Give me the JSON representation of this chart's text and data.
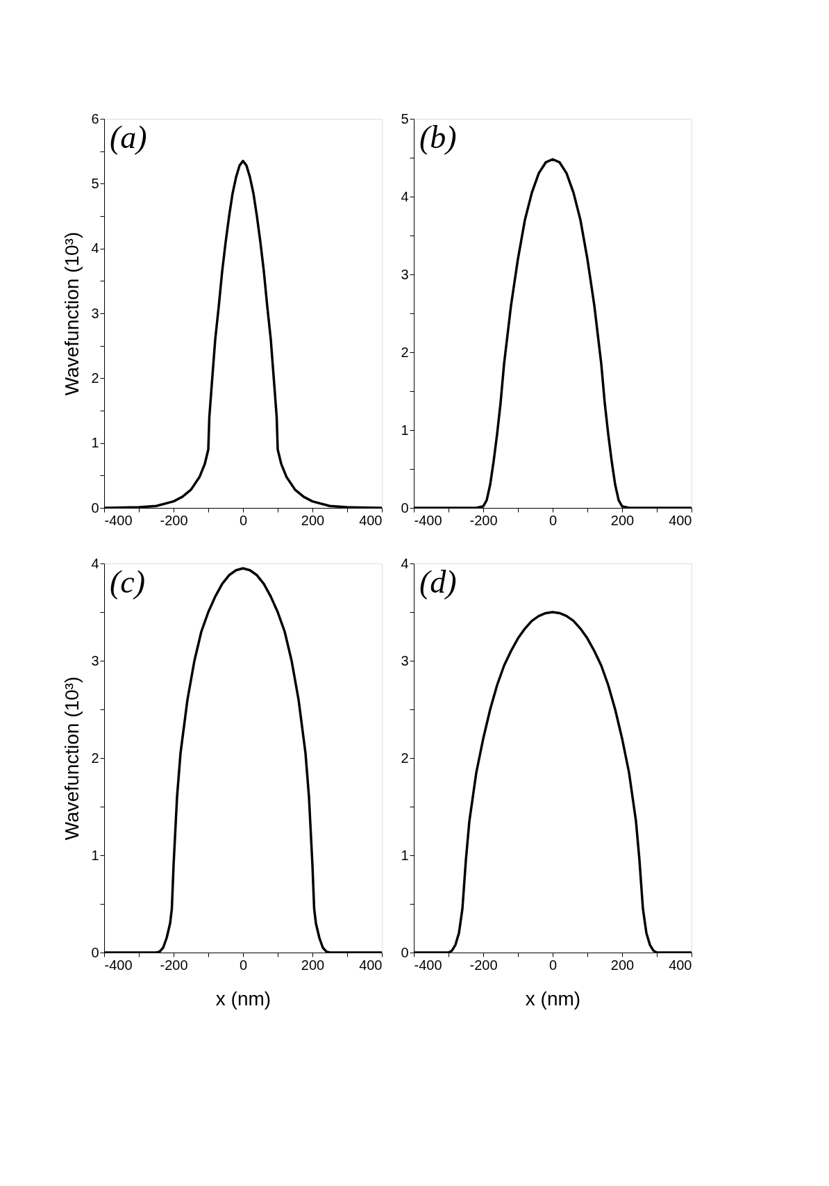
{
  "chart_data": [
    {
      "type": "line",
      "ylabel": "Wavefunction (10³)",
      "annotations": [
        "(a)"
      ],
      "xlim": [
        -400,
        400
      ],
      "ylim": [
        0,
        6
      ],
      "grid": false,
      "line_style": "solid",
      "xticks": [
        -400,
        {
          "value": -300,
          "label": null
        },
        -200,
        {
          "value": -100,
          "label": null
        },
        0,
        {
          "value": 100,
          "label": null
        },
        200,
        {
          "value": 300,
          "label": null
        },
        400
      ],
      "yticks": [
        0,
        {
          "value": 0.5,
          "label": null
        },
        1,
        {
          "value": 1.5,
          "label": null
        },
        2,
        {
          "value": 2.5,
          "label": null
        },
        3,
        {
          "value": 3.5,
          "label": null
        },
        4,
        {
          "value": 4.5,
          "label": null
        },
        5,
        {
          "value": 5.5,
          "label": null
        },
        6
      ],
      "series": [
        {
          "color": "#000000",
          "x": [
            -400,
            -300,
            -250,
            -200,
            -175,
            -150,
            -125,
            -110,
            -100,
            -97,
            -90,
            -80,
            -70,
            -60,
            -50,
            -40,
            -30,
            -20,
            -10,
            0,
            10,
            20,
            30,
            40,
            50,
            60,
            70,
            80,
            90,
            97,
            100,
            110,
            125,
            150,
            175,
            200,
            250,
            300,
            400
          ],
          "values": [
            0,
            0.01,
            0.03,
            0.1,
            0.17,
            0.28,
            0.48,
            0.68,
            0.9,
            1.4,
            1.9,
            2.6,
            3.1,
            3.65,
            4.1,
            4.5,
            4.85,
            5.1,
            5.28,
            5.35,
            5.28,
            5.1,
            4.85,
            4.5,
            4.1,
            3.65,
            3.1,
            2.6,
            1.9,
            1.4,
            0.9,
            0.68,
            0.48,
            0.28,
            0.17,
            0.1,
            0.03,
            0.01,
            0
          ]
        }
      ]
    },
    {
      "type": "line",
      "annotations": [
        "(b)"
      ],
      "xlim": [
        -400,
        400
      ],
      "ylim": [
        0,
        5
      ],
      "grid": false,
      "line_style": "solid",
      "xticks": [
        -400,
        {
          "value": -300,
          "label": null
        },
        -200,
        {
          "value": -100,
          "label": null
        },
        0,
        {
          "value": 100,
          "label": null
        },
        200,
        {
          "value": 300,
          "label": null
        },
        400
      ],
      "yticks": [
        0,
        {
          "value": 0.5,
          "label": null
        },
        1,
        {
          "value": 1.5,
          "label": null
        },
        2,
        {
          "value": 2.5,
          "label": null
        },
        3,
        {
          "value": 3.5,
          "label": null
        },
        4,
        {
          "value": 4.5,
          "label": null
        },
        5
      ],
      "series": [
        {
          "color": "#000000",
          "x": [
            -400,
            -220,
            -200,
            -190,
            -180,
            -170,
            -160,
            -150,
            -140,
            -120,
            -100,
            -80,
            -60,
            -40,
            -20,
            0,
            20,
            40,
            60,
            80,
            100,
            120,
            140,
            150,
            160,
            170,
            180,
            190,
            200,
            220,
            400
          ],
          "values": [
            0,
            0,
            0.02,
            0.1,
            0.3,
            0.6,
            0.95,
            1.35,
            1.85,
            2.6,
            3.2,
            3.7,
            4.05,
            4.3,
            4.44,
            4.48,
            4.44,
            4.3,
            4.05,
            3.7,
            3.2,
            2.6,
            1.85,
            1.35,
            0.95,
            0.6,
            0.3,
            0.1,
            0.02,
            0,
            0
          ]
        }
      ]
    },
    {
      "type": "line",
      "xlabel": "x (nm)",
      "ylabel": "Wavefunction (10³)",
      "annotations": [
        "(c)"
      ],
      "xlim": [
        -400,
        400
      ],
      "ylim": [
        0,
        4
      ],
      "grid": false,
      "line_style": "solid",
      "xticks": [
        -400,
        {
          "value": -300,
          "label": null
        },
        -200,
        {
          "value": -100,
          "label": null
        },
        0,
        {
          "value": 100,
          "label": null
        },
        200,
        {
          "value": 300,
          "label": null
        },
        400
      ],
      "yticks": [
        0,
        {
          "value": 0.5,
          "label": null
        },
        1,
        {
          "value": 1.5,
          "label": null
        },
        2,
        {
          "value": 2.5,
          "label": null
        },
        3,
        {
          "value": 3.5,
          "label": null
        },
        4
      ],
      "series": [
        {
          "color": "#000000",
          "x": [
            -400,
            -250,
            -240,
            -230,
            -220,
            -210,
            -205,
            -200,
            -190,
            -180,
            -160,
            -140,
            -120,
            -100,
            -80,
            -60,
            -40,
            -20,
            0,
            20,
            40,
            60,
            80,
            100,
            120,
            140,
            160,
            180,
            190,
            200,
            205,
            210,
            220,
            230,
            240,
            250,
            400
          ],
          "values": [
            0,
            0,
            0.01,
            0.05,
            0.15,
            0.3,
            0.45,
            0.9,
            1.6,
            2.05,
            2.6,
            3.0,
            3.3,
            3.5,
            3.66,
            3.79,
            3.88,
            3.93,
            3.95,
            3.93,
            3.88,
            3.79,
            3.66,
            3.5,
            3.3,
            3.0,
            2.6,
            2.05,
            1.6,
            0.9,
            0.45,
            0.3,
            0.15,
            0.05,
            0.01,
            0,
            0
          ]
        }
      ]
    },
    {
      "type": "line",
      "xlabel": "x (nm)",
      "annotations": [
        "(d)"
      ],
      "xlim": [
        -400,
        400
      ],
      "ylim": [
        0,
        4
      ],
      "grid": false,
      "line_style": "solid",
      "xticks": [
        -400,
        {
          "value": -300,
          "label": null
        },
        -200,
        {
          "value": -100,
          "label": null
        },
        0,
        {
          "value": 100,
          "label": null
        },
        200,
        {
          "value": 300,
          "label": null
        },
        400
      ],
      "yticks": [
        0,
        {
          "value": 0.5,
          "label": null
        },
        1,
        {
          "value": 1.5,
          "label": null
        },
        2,
        {
          "value": 2.5,
          "label": null
        },
        3,
        {
          "value": 3.5,
          "label": null
        },
        4
      ],
      "series": [
        {
          "color": "#000000",
          "x": [
            -400,
            -300,
            -290,
            -280,
            -270,
            -260,
            -250,
            -240,
            -220,
            -200,
            -180,
            -160,
            -140,
            -120,
            -100,
            -80,
            -60,
            -40,
            -20,
            0,
            20,
            40,
            60,
            80,
            100,
            120,
            140,
            160,
            180,
            200,
            220,
            240,
            250,
            260,
            270,
            280,
            290,
            300,
            400
          ],
          "values": [
            0,
            0,
            0.02,
            0.08,
            0.2,
            0.45,
            0.95,
            1.35,
            1.85,
            2.2,
            2.5,
            2.75,
            2.95,
            3.1,
            3.23,
            3.33,
            3.41,
            3.46,
            3.49,
            3.5,
            3.49,
            3.46,
            3.41,
            3.33,
            3.23,
            3.1,
            2.95,
            2.75,
            2.5,
            2.2,
            1.85,
            1.35,
            0.95,
            0.45,
            0.2,
            0.08,
            0.02,
            0,
            0
          ]
        }
      ]
    }
  ]
}
